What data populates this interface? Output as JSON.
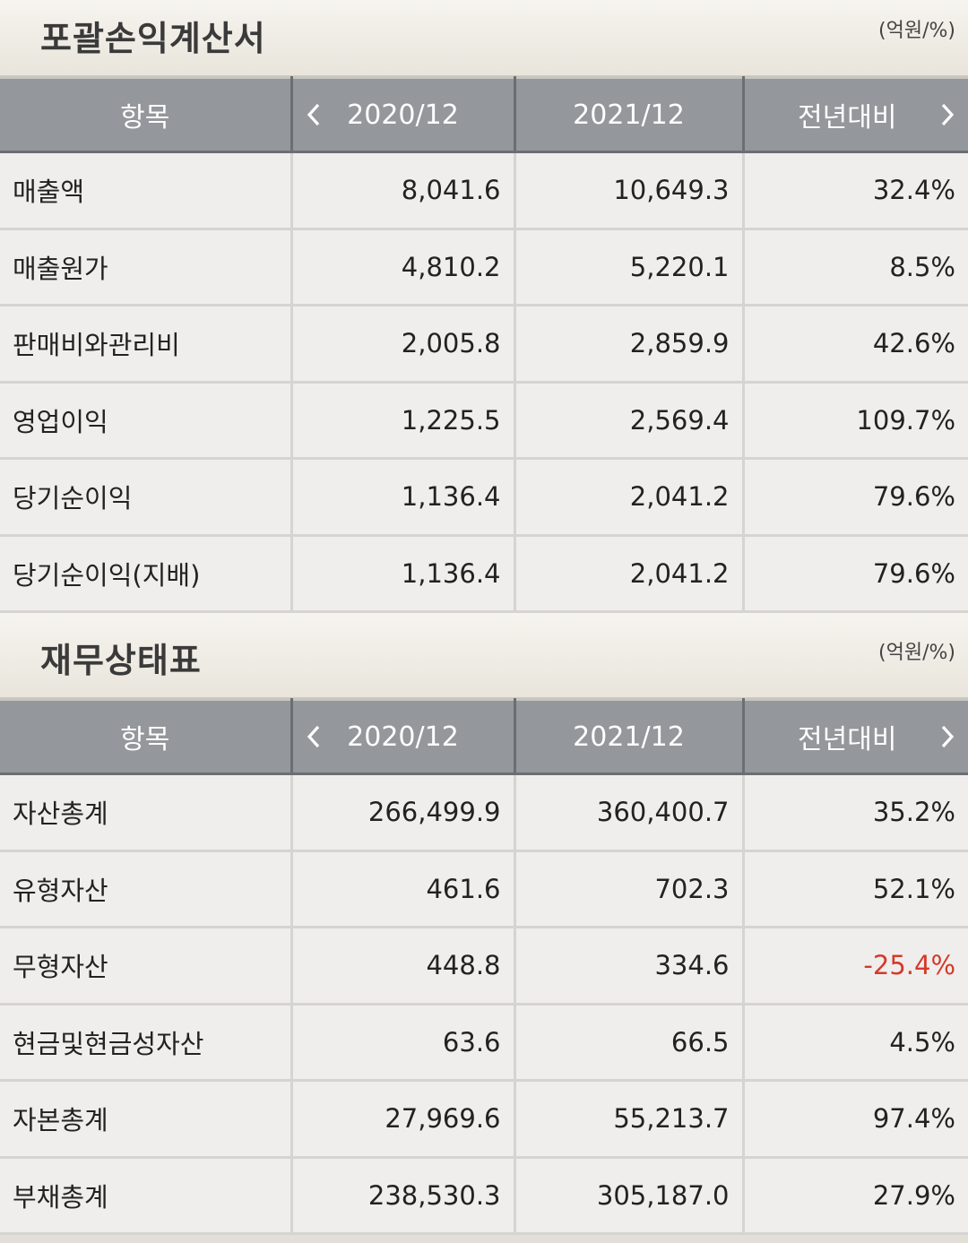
{
  "income_statement": {
    "title": "포괄손익계산서",
    "unit": "(억원/%)",
    "headers": [
      "항목",
      "2020/12",
      "2021/12",
      "전년대비"
    ],
    "rows": [
      {
        "item": "매출액",
        "y2020": "8,041.6",
        "y2021": "10,649.3",
        "yoy": "32.4%",
        "negative": false
      },
      {
        "item": "매출원가",
        "y2020": "4,810.2",
        "y2021": "5,220.1",
        "yoy": "8.5%",
        "negative": false
      },
      {
        "item": "판매비와관리비",
        "y2020": "2,005.8",
        "y2021": "2,859.9",
        "yoy": "42.6%",
        "negative": false
      },
      {
        "item": "영업이익",
        "y2020": "1,225.5",
        "y2021": "2,569.4",
        "yoy": "109.7%",
        "negative": false
      },
      {
        "item": "당기순이익",
        "y2020": "1,136.4",
        "y2021": "2,041.2",
        "yoy": "79.6%",
        "negative": false
      },
      {
        "item": "당기순이익(지배)",
        "y2020": "1,136.4",
        "y2021": "2,041.2",
        "yoy": "79.6%",
        "negative": false
      }
    ]
  },
  "balance_sheet": {
    "title": "재무상태표",
    "unit": "(억원/%)",
    "headers": [
      "항목",
      "2020/12",
      "2021/12",
      "전년대비"
    ],
    "rows": [
      {
        "item": "자산총계",
        "y2020": "266,499.9",
        "y2021": "360,400.7",
        "yoy": "35.2%",
        "negative": false
      },
      {
        "item": "유형자산",
        "y2020": "461.6",
        "y2021": "702.3",
        "yoy": "52.1%",
        "negative": false
      },
      {
        "item": "무형자산",
        "y2020": "448.8",
        "y2021": "334.6",
        "yoy": "-25.4%",
        "negative": true
      },
      {
        "item": "현금및현금성자산",
        "y2020": "63.6",
        "y2021": "66.5",
        "yoy": "4.5%",
        "negative": false
      },
      {
        "item": "자본총계",
        "y2020": "27,969.6",
        "y2021": "55,213.7",
        "yoy": "97.4%",
        "negative": false
      },
      {
        "item": "부채총계",
        "y2020": "238,530.3",
        "y2021": "305,187.0",
        "yoy": "27.9%",
        "negative": false
      }
    ]
  },
  "colors": {
    "header_bg": "#94979b",
    "negative": "#d43a2a",
    "row_bg": "#efeeec"
  },
  "icons": {
    "prev": "chevron-left-icon",
    "next": "chevron-right-icon"
  }
}
